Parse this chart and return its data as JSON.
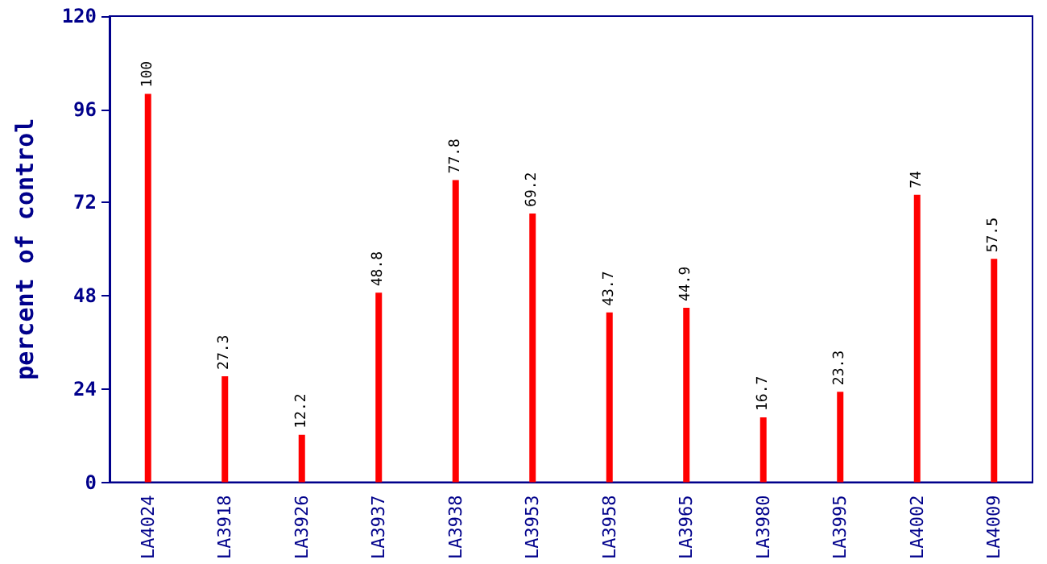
{
  "chart_data": {
    "type": "bar",
    "ylabel": "percent of control",
    "categories": [
      "LA4024",
      "LA3918",
      "LA3926",
      "LA3937",
      "LA3938",
      "LA3953",
      "LA3958",
      "LA3965",
      "LA3980",
      "LA3995",
      "LA4002",
      "LA4009"
    ],
    "values": [
      100,
      27.3,
      12.2,
      48.8,
      77.8,
      69.2,
      43.7,
      44.9,
      16.7,
      23.3,
      74,
      57.5
    ],
    "color": "#ff0000",
    "ylim": [
      0,
      120
    ],
    "yticks": [
      0,
      24,
      48,
      72,
      96,
      120
    ],
    "data_labels": true
  }
}
